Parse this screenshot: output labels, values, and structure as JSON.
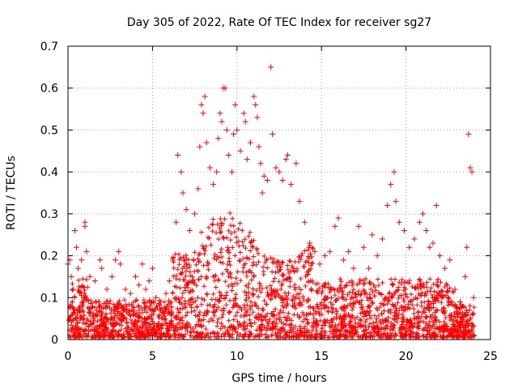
{
  "chart_data": {
    "type": "scatter",
    "title": "Day 305 of 2022, Rate Of TEC Index for receiver sg27",
    "xlabel": "GPS time / hours",
    "ylabel": "ROTI / TECUs",
    "xlim": [
      0,
      25
    ],
    "ylim": [
      0,
      0.7
    ],
    "xticks": [
      "0",
      "5",
      "10",
      "15",
      "20",
      "25"
    ],
    "yticks": [
      "0",
      "0.1",
      "0.2",
      "0.3",
      "0.4",
      "0.5",
      "0.6",
      "0.7"
    ],
    "grid": true,
    "marker": "+",
    "color": "#ff0000",
    "series": [
      {
        "points": [
          [
            0.0,
            0.18
          ],
          [
            0.1,
            0.19
          ],
          [
            0.2,
            0.15
          ],
          [
            0.3,
            0.12
          ],
          [
            0.4,
            0.26
          ],
          [
            0.5,
            0.22
          ],
          [
            0.6,
            0.17
          ],
          [
            0.8,
            0.19
          ],
          [
            1.0,
            0.28
          ],
          [
            1.0,
            0.27
          ],
          [
            1.1,
            0.21
          ],
          [
            1.3,
            0.15
          ],
          [
            1.6,
            0.14
          ],
          [
            1.9,
            0.19
          ],
          [
            2.0,
            0.17
          ],
          [
            2.3,
            0.12
          ],
          [
            2.6,
            0.15
          ],
          [
            2.8,
            0.19
          ],
          [
            3.0,
            0.21
          ],
          [
            3.1,
            0.18
          ],
          [
            3.4,
            0.12
          ],
          [
            3.7,
            0.11
          ],
          [
            4.0,
            0.15
          ],
          [
            4.2,
            0.13
          ],
          [
            4.4,
            0.18
          ],
          [
            4.6,
            0.12
          ],
          [
            4.8,
            0.14
          ],
          [
            5.0,
            0.17
          ],
          [
            5.2,
            0.1
          ],
          [
            5.5,
            0.09
          ],
          [
            5.8,
            0.11
          ],
          [
            6.0,
            0.14
          ],
          [
            6.2,
            0.19
          ],
          [
            6.4,
            0.28
          ],
          [
            6.5,
            0.44
          ],
          [
            6.7,
            0.4
          ],
          [
            6.8,
            0.35
          ],
          [
            7.0,
            0.31
          ],
          [
            7.2,
            0.26
          ],
          [
            7.5,
            0.3
          ],
          [
            7.7,
            0.36
          ],
          [
            7.8,
            0.46
          ],
          [
            7.9,
            0.56
          ],
          [
            8.0,
            0.54
          ],
          [
            8.1,
            0.58
          ],
          [
            8.2,
            0.47
          ],
          [
            8.4,
            0.41
          ],
          [
            8.6,
            0.37
          ],
          [
            8.8,
            0.4
          ],
          [
            8.9,
            0.48
          ],
          [
            9.0,
            0.54
          ],
          [
            9.1,
            0.52
          ],
          [
            9.2,
            0.6
          ],
          [
            9.3,
            0.6
          ],
          [
            9.4,
            0.5
          ],
          [
            9.5,
            0.44
          ],
          [
            9.7,
            0.4
          ],
          [
            9.8,
            0.49
          ],
          [
            9.9,
            0.56
          ],
          [
            10.0,
            0.5
          ],
          [
            10.2,
            0.45
          ],
          [
            10.4,
            0.54
          ],
          [
            10.5,
            0.52
          ],
          [
            10.6,
            0.43
          ],
          [
            10.8,
            0.47
          ],
          [
            11.0,
            0.58
          ],
          [
            11.1,
            0.56
          ],
          [
            11.2,
            0.53
          ],
          [
            11.3,
            0.46
          ],
          [
            11.4,
            0.42
          ],
          [
            11.5,
            0.35
          ],
          [
            11.6,
            0.39
          ],
          [
            11.8,
            0.38
          ],
          [
            12.0,
            0.65
          ],
          [
            12.1,
            0.49
          ],
          [
            12.3,
            0.41
          ],
          [
            12.5,
            0.4
          ],
          [
            12.7,
            0.38
          ],
          [
            12.9,
            0.43
          ],
          [
            13.0,
            0.44
          ],
          [
            13.2,
            0.37
          ],
          [
            13.5,
            0.42
          ],
          [
            13.7,
            0.33
          ],
          [
            14.0,
            0.28
          ],
          [
            14.3,
            0.23
          ],
          [
            14.6,
            0.21
          ],
          [
            14.9,
            0.18
          ],
          [
            15.2,
            0.2
          ],
          [
            15.5,
            0.21
          ],
          [
            15.8,
            0.27
          ],
          [
            16.0,
            0.29
          ],
          [
            16.3,
            0.19
          ],
          [
            16.6,
            0.21
          ],
          [
            16.9,
            0.17
          ],
          [
            17.2,
            0.27
          ],
          [
            17.5,
            0.22
          ],
          [
            17.8,
            0.17
          ],
          [
            18.0,
            0.25
          ],
          [
            18.3,
            0.2
          ],
          [
            18.6,
            0.24
          ],
          [
            18.9,
            0.32
          ],
          [
            19.1,
            0.37
          ],
          [
            19.3,
            0.4
          ],
          [
            19.4,
            0.33
          ],
          [
            19.6,
            0.28
          ],
          [
            19.9,
            0.26
          ],
          [
            20.2,
            0.22
          ],
          [
            20.5,
            0.24
          ],
          [
            20.8,
            0.28
          ],
          [
            21.0,
            0.3
          ],
          [
            21.2,
            0.26
          ],
          [
            21.4,
            0.22
          ],
          [
            21.6,
            0.23
          ],
          [
            21.8,
            0.32
          ],
          [
            22.0,
            0.2
          ],
          [
            22.3,
            0.17
          ],
          [
            22.6,
            0.19
          ],
          [
            22.9,
            0.12
          ],
          [
            23.2,
            0.09
          ],
          [
            23.5,
            0.15
          ],
          [
            23.6,
            0.22
          ],
          [
            23.7,
            0.49
          ],
          [
            23.8,
            0.41
          ],
          [
            23.9,
            0.4
          ],
          [
            24.0,
            0.1
          ]
        ]
      }
    ]
  }
}
